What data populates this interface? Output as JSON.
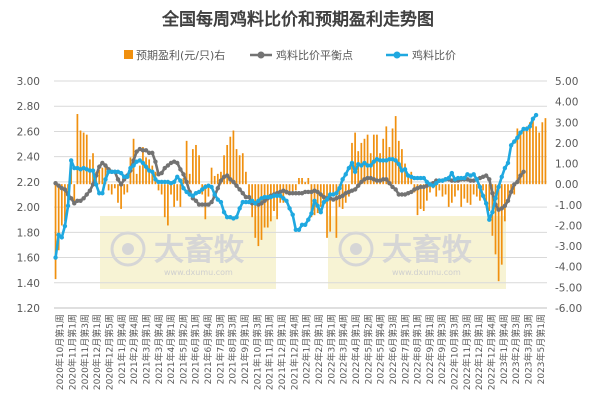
{
  "chart_data": {
    "type": "bar+line",
    "title": "全国每周鸡料比价和预期盈利走势图",
    "legend_position": "top",
    "left_axis": {
      "min": 1.2,
      "max": 3.0,
      "ticks": [
        "1.20",
        "1.40",
        "1.60",
        "1.80",
        "2.00",
        "2.20",
        "2.40",
        "2.60",
        "2.80",
        "3.00"
      ]
    },
    "right_axis": {
      "min": -6.0,
      "max": 5.0,
      "ticks": [
        "-6.00",
        "-5.00",
        "-4.00",
        "-3.00",
        "-2.00",
        "-1.00",
        "0.00",
        "1.00",
        "2.00",
        "3.00",
        "4.00",
        "5.00"
      ]
    },
    "grid": "horizontal",
    "x_tick_labels": [
      "2020年10月第1周",
      "2020年11月第1周",
      "2020年11月第3周",
      "2020年12月第1周",
      "2020年12月第5周",
      "2021年1月第4周",
      "2021年2月第4周",
      "2021年3月第1周",
      "2021年3月第4周",
      "2021年4月第1周",
      "2021年5月第2周",
      "2021年6月第1周",
      "2021年6月第4周",
      "2021年7月第3周",
      "2021年8月第3周",
      "2021年9月第1周",
      "2021年10月第3周",
      "2021年11月第1周",
      "2021年12月第1周",
      "2021年12月第4周",
      "2022年1月第1周",
      "2022年2月第1周",
      "2022年3月第1周",
      "2022年3月第4周",
      "2022年4月第1周",
      "2022年5月第2周",
      "2022年5月第4周",
      "2022年6月第3周",
      "2022年7月第1周",
      "2022年8月第1周",
      "2022年9月第1周",
      "2022年9月第3周",
      "2022年10月第3周",
      "2022年11月第3周",
      "2022年12月第1周",
      "2022年12月第4周",
      "2023年1月第4周",
      "2023年2月第3周",
      "2023年3月第3周",
      "2023年5月第1周"
    ],
    "series": [
      {
        "name": "预期盈利(元/只)右",
        "type": "bar",
        "axis": "right",
        "color": "#f0900f",
        "values": [
          -4.6,
          -3.2,
          -2.0,
          -1.8,
          -1.2,
          0.8,
          -1.0,
          3.4,
          2.6,
          2.5,
          2.4,
          1.2,
          1.5,
          0.6,
          0.7,
          0.8,
          0.9,
          -0.3,
          -0.5,
          -0.2,
          -0.9,
          -1.2,
          -0.5,
          -0.4,
          1.3,
          2.2,
          0.5,
          0.9,
          1.8,
          1.3,
          1.2,
          0.9,
          0.6,
          -0.3,
          -0.5,
          -1.6,
          -2.0,
          -0.5,
          -1.1,
          -0.8,
          -1.1,
          0.3,
          2.1,
          0.5,
          1.7,
          1.9,
          1.4,
          -0.5,
          -1.7,
          -0.6,
          0.8,
          0.4,
          0.5,
          0.6,
          1.4,
          1.9,
          2.3,
          2.6,
          1.7,
          1.4,
          1.5,
          0.6,
          -0.6,
          -1.6,
          -2.6,
          -3.0,
          -2.7,
          -2.1,
          -2.1,
          -1.8,
          -1.3,
          -1.7,
          -0.9,
          -0.9,
          -0.5,
          -0.4,
          -0.4,
          -0.3,
          0.3,
          0.3,
          0.1,
          0.3,
          -1.6,
          -1.5,
          -1.4,
          -1.1,
          -0.9,
          -2.6,
          -2.3,
          -0.4,
          -2.6,
          -1.1,
          -1.2,
          -0.9,
          -0.6,
          2.0,
          2.5,
          1.6,
          2.0,
          2.2,
          2.4,
          1.5,
          2.4,
          2.4,
          1.5,
          2.2,
          2.8,
          1.8,
          2.7,
          3.3,
          2.1,
          1.7,
          1.0,
          0.5,
          0.6,
          -0.4,
          -1.5,
          -1.2,
          -1.3,
          -0.8,
          -0.4,
          -0.2,
          -0.6,
          -0.3,
          -0.6,
          -0.5,
          -1.1,
          -0.9,
          -0.6,
          -0.3,
          -1.1,
          -0.7,
          -0.9,
          -1.0,
          -0.5,
          -0.6,
          -0.8,
          -0.3,
          -1.0,
          -1.3,
          -2.5,
          -3.4,
          -4.7,
          -3.9,
          -1.8,
          -0.7,
          -0.4,
          -0.5,
          2.7,
          2.6,
          2.7,
          2.8,
          3.0,
          3.1,
          2.8,
          2.5,
          3.0,
          3.2
        ]
      },
      {
        "name": "鸡料比价平衡点",
        "type": "line",
        "axis": "left",
        "color": "#737373",
        "values": [
          2.19,
          2.17,
          2.15,
          2.14,
          2.1,
          2.07,
          2.03,
          2.05,
          2.05,
          2.07,
          2.1,
          2.13,
          2.18,
          2.25,
          2.32,
          2.35,
          2.33,
          2.3,
          2.28,
          2.28,
          2.22,
          2.18,
          2.22,
          2.25,
          2.29,
          2.37,
          2.44,
          2.46,
          2.45,
          2.45,
          2.43,
          2.43,
          2.36,
          2.26,
          2.27,
          2.31,
          2.33,
          2.35,
          2.36,
          2.35,
          2.3,
          2.26,
          2.2,
          2.12,
          2.07,
          2.05,
          2.02,
          2.02,
          2.02,
          2.02,
          2.04,
          2.09,
          2.15,
          2.21,
          2.24,
          2.25,
          2.22,
          2.2,
          2.17,
          2.14,
          2.11,
          2.08,
          2.08,
          2.03,
          2.03,
          2.02,
          2.03,
          2.05,
          2.07,
          2.09,
          2.1,
          2.11,
          2.12,
          2.13,
          2.12,
          2.11,
          2.11,
          2.11,
          2.11,
          2.11,
          2.12,
          2.12,
          2.12,
          2.13,
          2.12,
          2.1,
          2.08,
          2.07,
          2.07,
          2.06,
          2.07,
          2.08,
          2.09,
          2.11,
          2.12,
          2.13,
          2.14,
          2.17,
          2.2,
          2.22,
          2.23,
          2.23,
          2.22,
          2.21,
          2.21,
          2.22,
          2.22,
          2.19,
          2.16,
          2.14,
          2.1,
          2.1,
          2.1,
          2.11,
          2.12,
          2.14,
          2.15,
          2.16,
          2.16,
          2.17,
          2.18,
          2.19,
          2.21,
          2.21,
          2.21,
          2.22,
          2.22,
          2.21,
          2.21,
          2.21,
          2.22,
          2.22,
          2.22,
          2.21,
          2.21,
          2.22,
          2.23,
          2.24,
          2.25,
          2.22,
          2.11,
          2.02,
          1.98,
          1.99,
          2.01,
          2.05,
          2.12,
          2.18,
          2.2,
          2.25,
          2.28
        ]
      },
      {
        "name": "鸡料比价",
        "type": "line",
        "axis": "left",
        "color": "#1fa8e0",
        "values": [
          1.6,
          1.78,
          1.76,
          1.85,
          2.01,
          2.37,
          2.31,
          2.31,
          2.3,
          2.31,
          2.3,
          2.29,
          2.29,
          2.18,
          2.11,
          2.11,
          2.22,
          2.28,
          2.28,
          2.28,
          2.28,
          2.27,
          2.24,
          2.24,
          2.31,
          2.33,
          2.36,
          2.37,
          2.35,
          2.32,
          2.29,
          2.28,
          2.22,
          2.2,
          2.2,
          2.2,
          2.2,
          2.19,
          2.2,
          2.24,
          2.21,
          2.15,
          2.12,
          2.1,
          2.09,
          2.11,
          2.12,
          2.14,
          2.16,
          2.17,
          2.16,
          2.1,
          2.06,
          2.04,
          1.96,
          1.92,
          1.92,
          1.91,
          1.92,
          1.99,
          2.04,
          2.04,
          2.04,
          2.05,
          2.03,
          2.05,
          2.07,
          2.08,
          2.08,
          2.08,
          2.09,
          2.09,
          2.09,
          2.07,
          2.05,
          1.99,
          1.94,
          1.82,
          1.82,
          1.86,
          1.86,
          1.9,
          1.95,
          2.05,
          2.01,
          1.96,
          2.04,
          2.06,
          2.1,
          2.1,
          2.11,
          2.15,
          2.22,
          2.26,
          2.31,
          2.35,
          2.28,
          2.34,
          2.33,
          2.35,
          2.33,
          2.33,
          2.36,
          2.38,
          2.37,
          2.37,
          2.37,
          2.38,
          2.38,
          2.37,
          2.34,
          2.29,
          2.3,
          2.25,
          2.24,
          2.23,
          2.23,
          2.23,
          2.23,
          2.2,
          2.18,
          2.17,
          2.19,
          2.21,
          2.21,
          2.22,
          2.23,
          2.27,
          2.22,
          2.23,
          2.23,
          2.23,
          2.26,
          2.25,
          2.26,
          2.22,
          2.16,
          2.09,
          2.03,
          1.9,
          1.96,
          2.07,
          2.16,
          2.24,
          2.31,
          2.35,
          2.49,
          2.52,
          2.55,
          2.59,
          2.62,
          2.62,
          2.64,
          2.7,
          2.73
        ]
      }
    ]
  },
  "watermark": {
    "brand_text": "大畜牧",
    "url_text": "www.dxumu.com"
  }
}
